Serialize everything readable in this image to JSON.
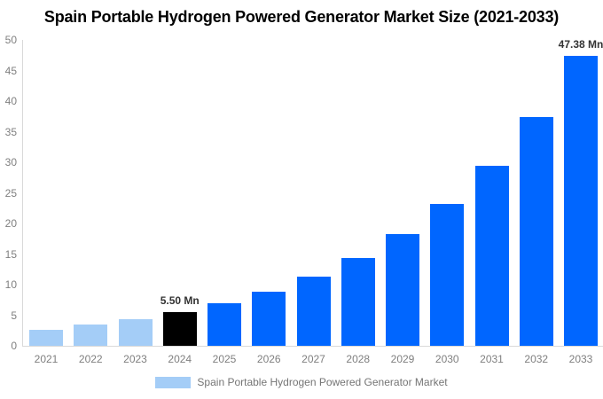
{
  "title": "Spain Portable Hydrogen Powered Generator Market Size (2021-2033)",
  "legend": {
    "label": "Spain Portable Hydrogen Powered Generator Market",
    "swatch_color": "#A4CDF7"
  },
  "colors": {
    "light_blue": "#A4CDF7",
    "highlight_black": "#000000",
    "primary_blue": "#0066FF",
    "axis_text": "#7F7F7F",
    "axis_line": "#D9D9D9",
    "annotation_text": "#333333",
    "background": "#FFFFFF"
  },
  "chart_data": {
    "type": "bar",
    "title": "Spain Portable Hydrogen Powered Generator Market Size (2021-2033)",
    "categories": [
      "2021",
      "2022",
      "2023",
      "2024",
      "2025",
      "2026",
      "2027",
      "2028",
      "2029",
      "2030",
      "2031",
      "2032",
      "2033"
    ],
    "values": [
      2.68,
      3.41,
      4.33,
      5.5,
      6.99,
      8.88,
      11.28,
      14.33,
      18.21,
      23.13,
      29.39,
      37.34,
      47.38
    ],
    "unit": "Mn",
    "bar_colors": [
      "#A4CDF7",
      "#A4CDF7",
      "#A4CDF7",
      "#000000",
      "#0066FF",
      "#0066FF",
      "#0066FF",
      "#0066FF",
      "#0066FF",
      "#0066FF",
      "#0066FF",
      "#0066FF",
      "#0066FF"
    ],
    "annotations": [
      {
        "index": 3,
        "category": "2024",
        "text": "5.50 Mn"
      },
      {
        "index": 12,
        "category": "2033",
        "text": "47.38 Mn"
      }
    ],
    "xlabel": "",
    "ylabel": "",
    "ylim": [
      0,
      50
    ],
    "yticks": [
      0,
      5,
      10,
      15,
      20,
      25,
      30,
      35,
      40,
      45,
      50
    ],
    "grid": false,
    "legend_entries": [
      "Spain Portable Hydrogen Powered Generator Market"
    ],
    "legend_position": "bottom"
  }
}
